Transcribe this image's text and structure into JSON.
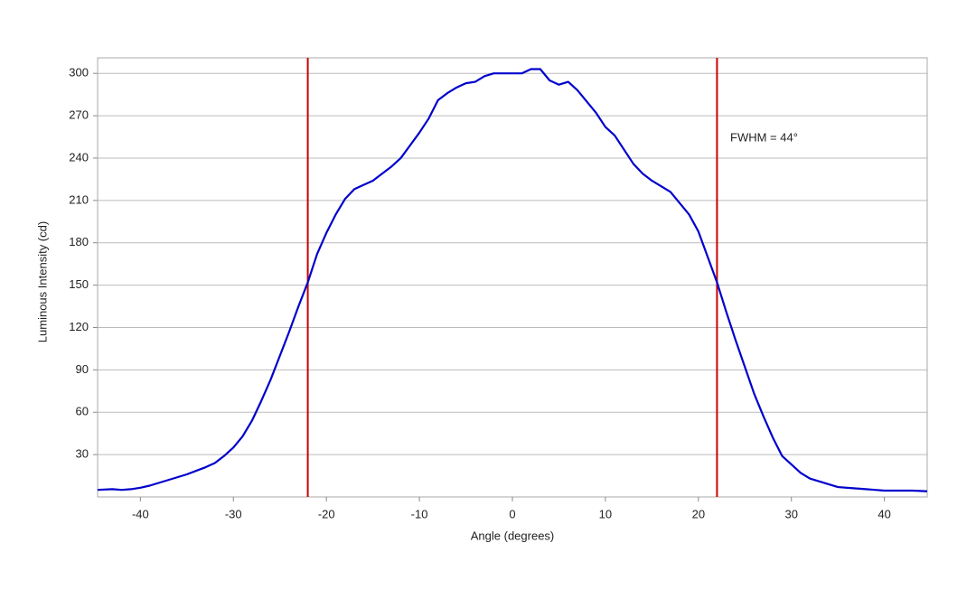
{
  "chart_data": {
    "type": "line",
    "x_label": "Angle (degrees)",
    "y_label": "Luminous Intensity (cd)",
    "annotation": "FWHM = 44°",
    "x": [
      -44.6,
      -43,
      -42,
      -41,
      -40,
      -39,
      -38,
      -37,
      -36,
      -35,
      -34,
      -33,
      -32,
      -31,
      -30,
      -29,
      -28,
      -27,
      -26,
      -25,
      -24,
      -23,
      -22,
      -21,
      -20,
      -19,
      -18,
      -17,
      -16,
      -15,
      -14,
      -13,
      -12,
      -11,
      -10,
      -9,
      -8,
      -7,
      -6,
      -5,
      -4,
      -3,
      -2,
      -1,
      0,
      1,
      2,
      3,
      4,
      5,
      6,
      7,
      8,
      9,
      10,
      11,
      12,
      13,
      14,
      15,
      16,
      17,
      18,
      19,
      20,
      21,
      22,
      23,
      24,
      25,
      26,
      27,
      28,
      29,
      30,
      31,
      32,
      33,
      34,
      35,
      36,
      37,
      38,
      39,
      40,
      41,
      42,
      43,
      44.6
    ],
    "series": [
      {
        "name": "Luminous Intensity",
        "color": "#0000cc",
        "values": [
          5,
          5.5,
          5,
          5.5,
          6.5,
          8,
          10,
          12,
          14,
          16,
          18.5,
          21,
          24,
          29,
          35,
          43,
          54,
          68,
          83,
          100,
          117,
          135,
          152,
          172,
          187,
          200,
          211,
          218,
          221,
          224,
          229,
          234,
          240,
          249,
          258,
          268,
          281,
          286,
          290,
          293,
          294,
          298,
          300,
          300,
          300,
          300,
          303,
          303,
          295,
          292,
          294,
          288,
          280,
          272,
          262,
          256,
          246,
          236,
          229,
          224,
          220,
          216,
          208,
          200,
          188,
          170,
          152,
          131,
          111,
          92,
          73,
          57,
          42,
          29,
          23,
          17,
          13,
          11,
          9,
          7,
          6.5,
          6,
          5.5,
          5,
          4.5,
          4.5,
          4.5,
          4.5,
          4
        ]
      }
    ],
    "vlines": [
      -22,
      22
    ],
    "vline_color": "#cc0000",
    "xlim": [
      -44.6,
      44.6
    ],
    "ylim": [
      0,
      311
    ],
    "xticks": [
      -40,
      -30,
      -20,
      -10,
      0,
      10,
      20,
      30,
      40
    ],
    "yticks": [
      30,
      60,
      90,
      120,
      150,
      180,
      210,
      240,
      270,
      300
    ],
    "grid": true
  }
}
